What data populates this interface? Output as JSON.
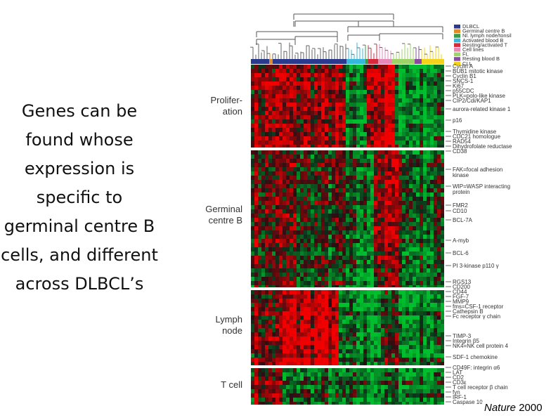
{
  "slide": {
    "text": "Genes can be found whose expression is specific to germinal centre B cells, and different across DLBCL’s",
    "citation": {
      "journal": "Nature",
      "year": "2000"
    }
  },
  "figure": {
    "legend": [
      {
        "label": "DLBCL",
        "color": "#2b3a8c"
      },
      {
        "label": "Germinal centre B",
        "color": "#e08a2c"
      },
      {
        "label": "Nl. lymph node/tonsil",
        "color": "#3a9a4a"
      },
      {
        "label": "Activated blood B",
        "color": "#35b8dc"
      },
      {
        "label": "Resting/activated T",
        "color": "#d8283c"
      },
      {
        "label": "Cell lines",
        "color": "#e88ab8"
      },
      {
        "label": "FL",
        "color": "#9ed36a"
      },
      {
        "label": "Resting blood B",
        "color": "#8a4aa0"
      },
      {
        "label": "CLL",
        "color": "#f2d21a"
      }
    ],
    "sections": [
      {
        "label": "Prolifer-\nation",
        "genes": [
          "Cyclin A",
          "BUB1 mitotic kinase",
          "Cyclin B1",
          "SNCS-1",
          "Ki67",
          "p55CDC",
          "PLK=polo-like kinase",
          "CIP2/Cdi/KAP1",
          "aurora-related kinase 1",
          "p16",
          "Thymidine kinase",
          "CDC21 homologue",
          "RAD54",
          "Dihydrofolate reductase",
          "CD38"
        ]
      },
      {
        "label": "Germinal\ncentre B",
        "genes": [
          "FAK=focal adhesion\nkinase",
          "WIP=WASP interacting\nprotein",
          "FMR2",
          "CD10",
          "BCL-7A",
          "A-myb",
          "BCL-6",
          "PI 3-kinase p110 γ"
        ]
      },
      {
        "label": "Lymph\nnode",
        "genes": [
          "RGS13",
          "CD200",
          "CD44",
          "FGF-7",
          "MMP9",
          "fms=CSF-1 receptor",
          "Cathepsin B",
          "Fc receptor γ chain",
          "TIMP-3",
          "Integrin β5",
          "NK4=NK cell protein 4",
          "SDF-1 chemokine"
        ]
      },
      {
        "label": "T cell",
        "genes": [
          "CD49F: integrin α6",
          "LAT",
          "CD2",
          "CD3ε",
          "T cell receptor β chain",
          "fyn",
          "IRF-1",
          "Caspase 10"
        ]
      }
    ]
  }
}
